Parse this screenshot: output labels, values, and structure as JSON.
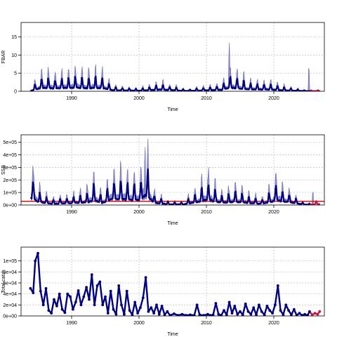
{
  "chart_data": [
    {
      "type": "line",
      "title": "",
      "xlabel": "Time",
      "ylabel": "FBAR",
      "xlim": [
        1982.5,
        2027.5
      ],
      "ylim": [
        0,
        19
      ],
      "x_ticks": [
        1990,
        2000,
        2010,
        2020
      ],
      "y_ticks": [
        0,
        5,
        10,
        15
      ],
      "y_tick_labels": [
        "0",
        "5",
        "10",
        "15"
      ],
      "grid": true,
      "colors": {
        "estimate": "#00007f",
        "band": "#6b6bb5",
        "forecast": "#cc1144"
      },
      "forecast_start": 2025.3,
      "key_points": [
        [
          1984,
          0.7
        ],
        [
          1985.5,
          3.8
        ],
        [
          1987.4,
          3.2
        ],
        [
          1989.8,
          4.1
        ],
        [
          1992.7,
          3.6
        ],
        [
          1994.4,
          3.9
        ],
        [
          1996,
          1.2
        ],
        [
          2000,
          0.6
        ],
        [
          2003.3,
          1.8
        ],
        [
          2007,
          0.4
        ],
        [
          2012.3,
          1.5
        ],
        [
          2013.4,
          4.2
        ],
        [
          2016.4,
          2.2
        ],
        [
          2019.5,
          1.8
        ],
        [
          2021.4,
          1.1
        ],
        [
          2024.8,
          0.2
        ],
        [
          2026.8,
          0.3
        ]
      ],
      "seasonal": {
        "period": 1.0,
        "peak_phase": 0.55
      },
      "band_spikes": [
        [
          2013.4,
          14.5
        ],
        [
          2025.2,
          7.5
        ]
      ]
    },
    {
      "type": "line",
      "title": "",
      "xlabel": "Time",
      "ylabel": "SSB",
      "xlim": [
        1982.5,
        2027.5
      ],
      "ylim": [
        0,
        560000
      ],
      "x_ticks": [
        1990,
        2000,
        2010,
        2020
      ],
      "y_ticks": [
        0,
        100000,
        200000,
        300000,
        400000,
        500000
      ],
      "y_tick_labels": [
        "0e+00",
        "1e+05",
        "2e+05",
        "3e+05",
        "4e+05",
        "5e+05"
      ],
      "grid": true,
      "reference_line": 30000,
      "colors": {
        "estimate": "#00007f",
        "band": "#6b6bb5",
        "reference": "#e00000",
        "forecast": "#cc1144"
      },
      "forecast_start": 2025.3,
      "key_points": [
        [
          1984,
          230000
        ],
        [
          1985.3,
          90000
        ],
        [
          1987,
          40000
        ],
        [
          1990,
          60000
        ],
        [
          1992.5,
          90000
        ],
        [
          1993.3,
          175000
        ],
        [
          1994.5,
          60000
        ],
        [
          1996,
          200000
        ],
        [
          1997.5,
          190000
        ],
        [
          1998.8,
          160000
        ],
        [
          2000.3,
          180000
        ],
        [
          2001,
          330000
        ],
        [
          2002.3,
          70000
        ],
        [
          2004.5,
          20000
        ],
        [
          2006.5,
          20000
        ],
        [
          2008,
          70000
        ],
        [
          2010.2,
          175000
        ],
        [
          2012.4,
          70000
        ],
        [
          2014.3,
          110000
        ],
        [
          2016.5,
          60000
        ],
        [
          2018.3,
          40000
        ],
        [
          2020.5,
          160000
        ],
        [
          2022.5,
          80000
        ],
        [
          2024.3,
          20000
        ],
        [
          2025.3,
          10000
        ],
        [
          2026.8,
          30000
        ]
      ],
      "seasonal": {
        "period": 1.0,
        "peak_phase": 0.3
      },
      "band_spikes": [
        [
          2000.9,
          500000
        ],
        [
          2010.2,
          230000
        ],
        [
          2020.4,
          210000
        ],
        [
          2025.8,
          120000
        ]
      ]
    },
    {
      "type": "line",
      "title": "",
      "xlabel": "Time",
      "ylabel": "Total catch",
      "xlim": [
        1982.5,
        2027.5
      ],
      "ylim": [
        0,
        125000
      ],
      "x_ticks": [
        1990,
        2000,
        2010,
        2020
      ],
      "y_ticks": [
        0,
        20000,
        40000,
        60000,
        80000,
        100000
      ],
      "y_tick_labels": [
        "0e+00",
        "2e+04",
        "4e+04",
        "6e+04",
        "8e+04",
        "1e+05"
      ],
      "grid": true,
      "colors": {
        "estimate": "#00007f",
        "forecast": "#cc1144"
      },
      "forecast_start": 2025.3,
      "points": [
        [
          1983.9,
          50000
        ],
        [
          1984.3,
          42000
        ],
        [
          1984.6,
          100000
        ],
        [
          1985.0,
          114000
        ],
        [
          1985.4,
          45000
        ],
        [
          1985.8,
          20000
        ],
        [
          1986.2,
          50000
        ],
        [
          1986.6,
          10000
        ],
        [
          1987.0,
          5000
        ],
        [
          1987.4,
          30000
        ],
        [
          1987.8,
          18000
        ],
        [
          1988.2,
          40000
        ],
        [
          1988.6,
          12000
        ],
        [
          1989.0,
          6000
        ],
        [
          1989.4,
          40000
        ],
        [
          1989.8,
          35000
        ],
        [
          1990.2,
          12000
        ],
        [
          1990.6,
          25000
        ],
        [
          1991.0,
          46000
        ],
        [
          1991.4,
          20000
        ],
        [
          1991.8,
          35000
        ],
        [
          1992.2,
          52000
        ],
        [
          1992.6,
          30000
        ],
        [
          1993.0,
          75000
        ],
        [
          1993.4,
          20000
        ],
        [
          1993.8,
          55000
        ],
        [
          1994.2,
          62000
        ],
        [
          1994.6,
          20000
        ],
        [
          1995.0,
          35000
        ],
        [
          1995.4,
          5000
        ],
        [
          1995.8,
          45000
        ],
        [
          1996.2,
          12000
        ],
        [
          1996.6,
          3000
        ],
        [
          1997.0,
          55000
        ],
        [
          1997.4,
          20000
        ],
        [
          1997.8,
          3000
        ],
        [
          1998.2,
          45000
        ],
        [
          1998.6,
          10000
        ],
        [
          1999.0,
          2000
        ],
        [
          1999.4,
          25000
        ],
        [
          1999.8,
          5000
        ],
        [
          2000.2,
          15000
        ],
        [
          2000.6,
          33000
        ],
        [
          2001.0,
          70000
        ],
        [
          2001.4,
          8000
        ],
        [
          2001.8,
          15000
        ],
        [
          2002.2,
          5000
        ],
        [
          2002.6,
          20000
        ],
        [
          2003.0,
          3000
        ],
        [
          2003.4,
          18000
        ],
        [
          2003.8,
          2000
        ],
        [
          2004.2,
          8000
        ],
        [
          2004.6,
          1000
        ],
        [
          2005.2,
          4000
        ],
        [
          2005.8,
          1000
        ],
        [
          2006.4,
          3000
        ],
        [
          2007.0,
          1000
        ],
        [
          2007.6,
          2000
        ],
        [
          2008.2,
          1000
        ],
        [
          2008.6,
          20000
        ],
        [
          2009.0,
          2000
        ],
        [
          2009.6,
          1000
        ],
        [
          2010.2,
          3000
        ],
        [
          2010.6,
          1000
        ],
        [
          2011.0,
          2000
        ],
        [
          2011.4,
          23000
        ],
        [
          2011.8,
          3000
        ],
        [
          2012.2,
          1000
        ],
        [
          2012.6,
          10000
        ],
        [
          2013.0,
          2000
        ],
        [
          2013.4,
          25000
        ],
        [
          2013.8,
          5000
        ],
        [
          2014.2,
          18000
        ],
        [
          2014.6,
          3000
        ],
        [
          2015.0,
          8000
        ],
        [
          2015.4,
          2000
        ],
        [
          2015.8,
          22000
        ],
        [
          2016.2,
          8000
        ],
        [
          2016.6,
          3000
        ],
        [
          2017.0,
          15000
        ],
        [
          2017.4,
          2000
        ],
        [
          2017.8,
          20000
        ],
        [
          2018.2,
          8000
        ],
        [
          2018.6,
          2000
        ],
        [
          2019.0,
          18000
        ],
        [
          2019.4,
          10000
        ],
        [
          2019.8,
          5000
        ],
        [
          2020.2,
          20000
        ],
        [
          2020.6,
          55000
        ],
        [
          2021.0,
          10000
        ],
        [
          2021.4,
          2000
        ],
        [
          2021.8,
          20000
        ],
        [
          2022.2,
          10000
        ],
        [
          2022.6,
          2000
        ],
        [
          2023.0,
          12000
        ],
        [
          2023.4,
          1000
        ],
        [
          2023.8,
          5000
        ],
        [
          2024.2,
          1000
        ],
        [
          2024.6,
          3000
        ],
        [
          2025.0,
          1000
        ],
        [
          2025.3,
          8000
        ],
        [
          2025.7,
          2000
        ],
        [
          2026.1,
          5000
        ],
        [
          2026.5,
          3000
        ],
        [
          2026.8,
          8000
        ]
      ]
    }
  ]
}
